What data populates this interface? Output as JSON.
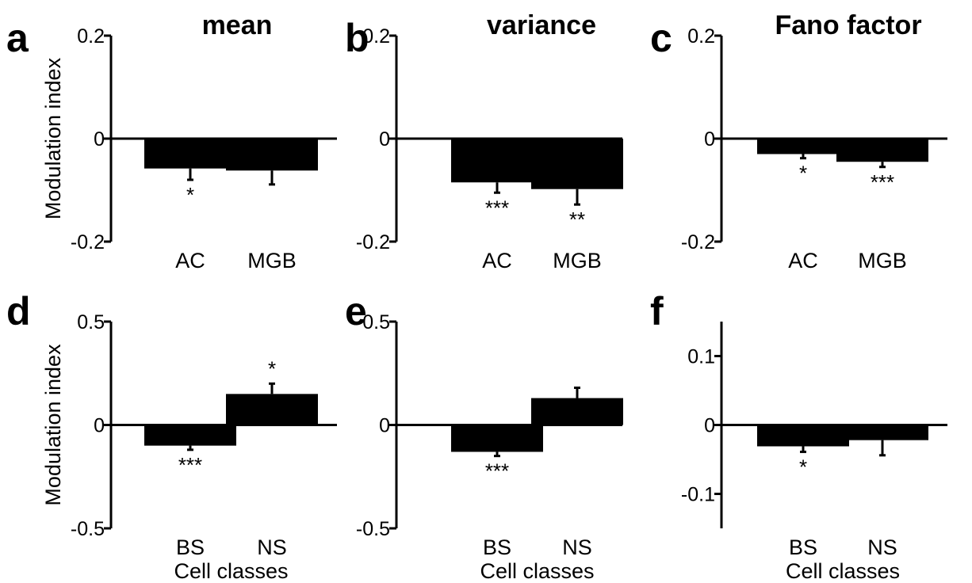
{
  "colors": {
    "bar": "#000000",
    "axis": "#000000"
  },
  "chart_data": [
    {
      "id": "a",
      "type": "bar",
      "letter": "a",
      "title": "mean",
      "categories": [
        "AC",
        "MGB"
      ],
      "values": [
        -0.058,
        -0.062
      ],
      "errors": [
        0.022,
        0.027
      ],
      "significance": [
        "*",
        ""
      ],
      "ylim": [
        -0.2,
        0.2
      ],
      "yticks": [
        -0.2,
        0,
        0.2
      ],
      "ytick_labels": [
        "-0.2",
        "0",
        "0.2"
      ],
      "ylabel": "Modulation index",
      "xlabel": ""
    },
    {
      "id": "b",
      "type": "bar",
      "letter": "b",
      "title": "variance",
      "categories": [
        "AC",
        "MGB"
      ],
      "values": [
        -0.085,
        -0.098
      ],
      "errors": [
        0.02,
        0.03
      ],
      "significance": [
        "***",
        "**"
      ],
      "ylim": [
        -0.2,
        0.2
      ],
      "yticks": [
        -0.2,
        0,
        0.2
      ],
      "ytick_labels": [
        "-0.2",
        "0",
        "0.2"
      ],
      "ylabel": "",
      "xlabel": ""
    },
    {
      "id": "c",
      "type": "bar",
      "letter": "c",
      "title": "Fano factor",
      "categories": [
        "AC",
        "MGB"
      ],
      "values": [
        -0.03,
        -0.045
      ],
      "errors": [
        0.008,
        0.01
      ],
      "significance": [
        "*",
        "***"
      ],
      "ylim": [
        -0.2,
        0.2
      ],
      "yticks": [
        -0.2,
        0,
        0.2
      ],
      "ytick_labels": [
        "-0.2",
        "0",
        "0.2"
      ],
      "ylabel": "",
      "xlabel": ""
    },
    {
      "id": "d",
      "type": "bar",
      "letter": "d",
      "title": "",
      "categories": [
        "BS",
        "NS"
      ],
      "values": [
        -0.1,
        0.15
      ],
      "errors": [
        0.02,
        0.05
      ],
      "significance": [
        "***",
        "*"
      ],
      "ylim": [
        -0.5,
        0.5
      ],
      "yticks": [
        -0.5,
        0,
        0.5
      ],
      "ytick_labels": [
        "-0.5",
        "0",
        "0.5"
      ],
      "ylabel": "Modulation index",
      "xlabel": "Cell classes"
    },
    {
      "id": "e",
      "type": "bar",
      "letter": "e",
      "title": "",
      "categories": [
        "BS",
        "NS"
      ],
      "values": [
        -0.13,
        0.13
      ],
      "errors": [
        0.02,
        0.05
      ],
      "significance": [
        "***",
        ""
      ],
      "ylim": [
        -0.5,
        0.5
      ],
      "yticks": [
        -0.5,
        0,
        0.5
      ],
      "ytick_labels": [
        "-0.5",
        "0",
        "0.5"
      ],
      "ylabel": "",
      "xlabel": "Cell classes"
    },
    {
      "id": "f",
      "type": "bar",
      "letter": "f",
      "title": "",
      "categories": [
        "BS",
        "NS"
      ],
      "values": [
        -0.031,
        -0.022
      ],
      "errors": [
        0.008,
        0.022
      ],
      "significance": [
        "*",
        ""
      ],
      "ylim": [
        -0.15,
        0.15
      ],
      "yticks": [
        -0.1,
        0,
        0.1
      ],
      "ytick_labels": [
        "-0.1",
        "0",
        "0.1"
      ],
      "ylabel": "",
      "xlabel": "Cell classes"
    }
  ]
}
